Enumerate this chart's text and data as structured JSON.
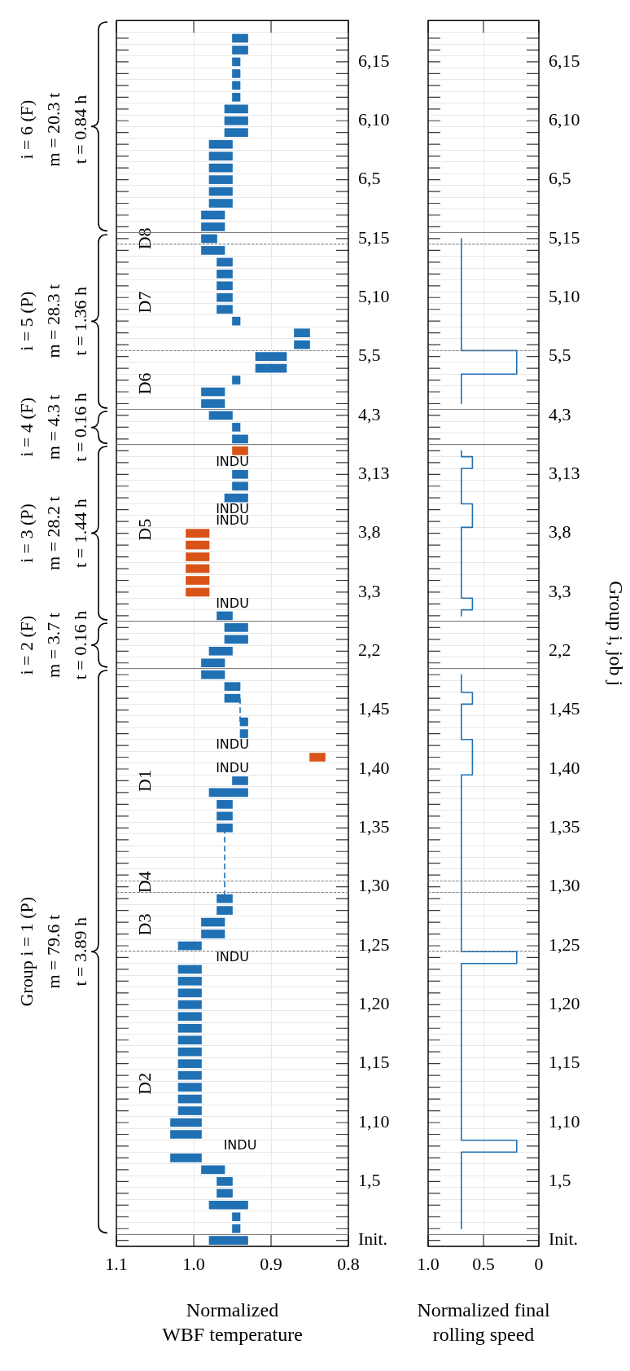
{
  "chart_data": [
    {
      "type": "bar",
      "orientation": "horizontal",
      "xlabel": "Normalized\nWBF temperature",
      "categories": [
        null,
        null,
        "6,15",
        null,
        null,
        null,
        null,
        "6,10",
        null,
        null,
        null,
        null,
        "6,5",
        null,
        null,
        null,
        null,
        "5,15",
        null,
        null,
        null,
        null,
        "5,10",
        null,
        null,
        null,
        null,
        "5,5",
        null,
        null,
        null,
        null,
        "4,3",
        null,
        null,
        null,
        null,
        "3,13",
        null,
        null,
        null,
        null,
        "3,8",
        null,
        null,
        null,
        null,
        "3,3",
        null,
        null,
        null,
        null,
        "2,2",
        null,
        null,
        null,
        null,
        "1,45",
        null,
        null,
        null,
        null,
        "1,40",
        null,
        null,
        null,
        null,
        "1,35",
        null,
        null,
        null,
        null,
        "1,30",
        null,
        null,
        null,
        null,
        "1,25",
        null,
        null,
        null,
        null,
        "1,20",
        null,
        null,
        null,
        null,
        "1,15",
        null,
        null,
        null,
        null,
        "1,10",
        null,
        null,
        null,
        null,
        "1,5",
        null,
        null,
        null,
        null,
        "Init."
      ],
      "xlim": [
        1.1,
        0.8
      ],
      "xticks": [
        1.1,
        {
          "value": 1,
          "label": "1.0"
        },
        0.9,
        0.8
      ],
      "grid": true,
      "series": [
        {
          "color": "#2070b4",
          "values": [
            0.02,
            0.02,
            0.01,
            0.01,
            0.01,
            0.01,
            0.03,
            0.03,
            0.03,
            0.03,
            0.03,
            0.03,
            0.03,
            0.03,
            0.03,
            0.03,
            0.03,
            0.02,
            0.03,
            0.02,
            0.02,
            0.02,
            0.02,
            0.02,
            0.01,
            0.02,
            0.02,
            0.04,
            0.04,
            0.01,
            0.03,
            0.03,
            0.03,
            0.01,
            0.02,
            null,
            null,
            0.02,
            0.02,
            0.03,
            null,
            null,
            null,
            null,
            null,
            null,
            null,
            null,
            null,
            0.02,
            0.03,
            0.03,
            0.03,
            0.03,
            0.03,
            0.02,
            0.02,
            null,
            0.01,
            0.01,
            null,
            null,
            null,
            0.02,
            0.05,
            0.02,
            0.02,
            0.02,
            null,
            null,
            null,
            null,
            null,
            0.02,
            0.02,
            0.03,
            0.03,
            0.03,
            null,
            0.03,
            0.03,
            0.03,
            0.03,
            0.03,
            0.03,
            0.03,
            0.03,
            0.03,
            0.03,
            0.03,
            0.03,
            0.03,
            0.04,
            0.04,
            null,
            0.04,
            0.03,
            0.02,
            0.02,
            0.05,
            0.01,
            0.01,
            0.05
          ],
          "base": [
            0.93,
            0.93,
            0.94,
            0.94,
            0.94,
            0.94,
            0.93,
            0.93,
            0.93,
            0.95,
            0.95,
            0.95,
            0.95,
            0.95,
            0.95,
            0.96,
            0.96,
            0.97,
            0.96,
            0.95,
            0.95,
            0.95,
            0.95,
            0.95,
            0.94,
            0.85,
            0.85,
            0.88,
            0.88,
            0.94,
            0.96,
            0.96,
            0.95,
            0.94,
            0.93,
            null,
            null,
            0.93,
            0.93,
            0.93,
            null,
            null,
            null,
            null,
            null,
            null,
            null,
            null,
            null,
            0.95,
            0.93,
            0.93,
            0.95,
            0.96,
            0.96,
            0.94,
            0.94,
            null,
            0.93,
            0.93,
            null,
            null,
            null,
            0.93,
            0.93,
            0.95,
            0.95,
            0.95,
            null,
            null,
            null,
            null,
            null,
            0.95,
            0.95,
            0.96,
            0.96,
            0.99,
            null,
            0.99,
            0.99,
            0.99,
            0.99,
            0.99,
            0.99,
            0.99,
            0.99,
            0.99,
            0.99,
            0.99,
            0.99,
            0.99,
            0.99,
            0.99,
            null,
            0.99,
            0.96,
            0.95,
            0.95,
            0.93,
            0.94,
            0.94,
            0.93
          ]
        },
        {
          "color": "#d95319",
          "values": [
            null,
            null,
            null,
            null,
            null,
            null,
            null,
            null,
            null,
            null,
            null,
            null,
            null,
            null,
            null,
            null,
            null,
            null,
            null,
            null,
            null,
            null,
            null,
            null,
            null,
            null,
            null,
            null,
            null,
            null,
            null,
            null,
            null,
            null,
            null,
            0.02,
            null,
            null,
            null,
            null,
            null,
            null,
            0.03,
            0.03,
            0.03,
            0.03,
            0.03,
            0.03,
            null,
            null,
            null,
            null,
            null,
            null,
            null,
            null,
            null,
            null,
            null,
            null,
            null,
            0.02,
            null,
            null,
            null,
            null,
            null,
            null,
            null,
            null,
            null,
            null,
            null,
            null,
            null,
            null,
            null,
            null,
            null,
            null,
            null,
            null,
            null,
            null,
            null,
            null,
            null,
            null,
            null,
            null,
            null,
            null,
            null,
            null,
            null,
            null,
            null,
            null,
            null,
            null,
            null,
            null,
            null
          ],
          "base": [
            null,
            null,
            null,
            null,
            null,
            null,
            null,
            null,
            null,
            null,
            null,
            null,
            null,
            null,
            null,
            null,
            null,
            null,
            null,
            null,
            null,
            null,
            null,
            null,
            null,
            null,
            null,
            null,
            null,
            null,
            null,
            null,
            null,
            null,
            null,
            0.93,
            null,
            null,
            null,
            null,
            null,
            null,
            0.98,
            0.98,
            0.98,
            0.98,
            0.98,
            0.98,
            null,
            null,
            null,
            null,
            null,
            null,
            null,
            null,
            null,
            null,
            null,
            null,
            null,
            0.83,
            null,
            null,
            null,
            null,
            null,
            null,
            null,
            null,
            null,
            null,
            null,
            null,
            null,
            null,
            null,
            null,
            null,
            null,
            null,
            null,
            null,
            null,
            null,
            null,
            null,
            null,
            null,
            null,
            null,
            null,
            null,
            null,
            null,
            null,
            null,
            null,
            null,
            null,
            null,
            null,
            null
          ]
        },
        {
          "type": "line",
          "line_style": "dashed",
          "color": "#2070b4",
          "values": [
            null,
            null,
            null,
            null,
            null,
            null,
            null,
            null,
            null,
            null,
            null,
            null,
            null,
            null,
            null,
            null,
            null,
            null,
            null,
            null,
            null,
            null,
            null,
            null,
            null,
            null,
            null,
            null,
            null,
            null,
            null,
            null,
            null,
            null,
            null,
            null,
            null,
            null,
            null,
            null,
            null,
            null,
            null,
            null,
            null,
            null,
            null,
            null,
            null,
            null,
            null,
            null,
            null,
            null,
            null,
            null,
            null,
            null,
            null,
            null,
            null,
            null,
            null,
            null,
            null,
            null,
            null,
            0.96,
            0.96,
            0.96,
            0.96,
            0.96,
            0.96,
            0.96,
            null,
            null,
            null,
            null,
            null,
            null,
            null,
            null,
            null,
            null,
            null,
            null,
            null,
            null,
            null,
            null,
            null,
            null,
            null,
            null,
            null,
            null,
            null,
            null,
            null,
            null,
            null,
            null,
            null
          ]
        },
        {
          "type": "line",
          "line_style": "dashed",
          "color": "#2070b4",
          "values": [
            null,
            null,
            null,
            null,
            null,
            null,
            null,
            null,
            null,
            null,
            null,
            null,
            null,
            null,
            null,
            null,
            null,
            null,
            null,
            null,
            null,
            null,
            null,
            null,
            null,
            null,
            null,
            null,
            null,
            null,
            null,
            null,
            null,
            null,
            null,
            null,
            null,
            null,
            null,
            null,
            null,
            null,
            null,
            null,
            null,
            null,
            null,
            null,
            null,
            null,
            null,
            null,
            null,
            null,
            null,
            null,
            0.94,
            0.94,
            0.94,
            null,
            null,
            null,
            null,
            null,
            null,
            null,
            null,
            null,
            null,
            null,
            null,
            null,
            null,
            null,
            null,
            null,
            null,
            null,
            null,
            null,
            null,
            null,
            null,
            null,
            null,
            null,
            null,
            null,
            null,
            null,
            null,
            null,
            null,
            null,
            null,
            null,
            null,
            null,
            null,
            null,
            null,
            null,
            null
          ]
        }
      ],
      "annotations": [
        "i = 6 (F)\nm = 20.3 t\nt = 0.84 h",
        "i = 5 (P)\nm = 28.3 t\nt = 1.36 h",
        "i = 4 (F)\nm = 4.3 t\nt = 0.16 h",
        "i = 3 (P)\nm = 28.2 t\nt = 1.44 h",
        "i = 2 (F)\nm = 3.7 t\nt = 0.16 h",
        "Group i = 1 (P)\nm = 79.6 t\nt = 3.89 h",
        "D8",
        "D7",
        "D6",
        "D5",
        "D1",
        "D4",
        "D3",
        "D2",
        "INDU",
        "INDU",
        "INDU",
        "INDU",
        "INDU",
        "INDU",
        "INDU",
        "INDU"
      ]
    },
    {
      "type": "step",
      "orientation": "horizontal",
      "xlabel": "Normalized final\nrolling speed",
      "ylabel": "Group i, job j",
      "categories": [
        null,
        null,
        "6,15",
        null,
        null,
        null,
        null,
        "6,10",
        null,
        null,
        null,
        null,
        "6,5",
        null,
        null,
        null,
        null,
        "5,15",
        null,
        null,
        null,
        null,
        "5,10",
        null,
        null,
        null,
        null,
        "5,5",
        null,
        null,
        null,
        null,
        "4,3",
        null,
        null,
        null,
        null,
        "3,13",
        null,
        null,
        null,
        null,
        "3,8",
        null,
        null,
        null,
        null,
        "3,3",
        null,
        null,
        null,
        null,
        "2,2",
        null,
        null,
        null,
        null,
        "1,45",
        null,
        null,
        null,
        null,
        "1,40",
        null,
        null,
        null,
        null,
        "1,35",
        null,
        null,
        null,
        null,
        "1,30",
        null,
        null,
        null,
        null,
        "1,25",
        null,
        null,
        null,
        null,
        "1,20",
        null,
        null,
        null,
        null,
        "1,15",
        null,
        null,
        null,
        null,
        "1,10",
        null,
        null,
        null,
        null,
        "1,5",
        null,
        null,
        null,
        null,
        "Init."
      ],
      "xlim": [
        1,
        0
      ],
      "xticks": [
        {
          "value": 1,
          "label": "1.0"
        },
        0.5,
        0
      ],
      "grid": true,
      "series": [
        {
          "color": "#2070b4",
          "values": [
            null,
            null,
            null,
            null,
            null,
            null,
            null,
            null,
            null,
            null,
            null,
            null,
            null,
            null,
            null,
            null,
            null,
            0.7,
            0.7,
            0.7,
            0.7,
            0.7,
            0.7,
            0.7,
            0.7,
            0.7,
            0.7,
            0.2,
            0.2,
            0.7,
            0.7,
            0.7,
            null,
            null,
            null,
            0.7,
            0.6,
            0.7,
            0.7,
            0.7,
            0.6,
            0.6,
            0.7,
            0.7,
            0.7,
            0.7,
            0.7,
            0.7,
            0.6,
            0.7,
            null,
            null,
            null,
            null,
            0.7,
            0.7,
            0.6,
            0.7,
            0.7,
            0.7,
            0.6,
            0.6,
            0.6,
            0.7,
            0.7,
            0.7,
            0.7,
            0.7,
            0.7,
            0.7,
            0.7,
            0.7,
            0.7,
            0.7,
            0.7,
            0.7,
            0.7,
            0.7,
            0.2,
            0.7,
            0.7,
            0.7,
            0.7,
            0.7,
            0.7,
            0.7,
            0.7,
            0.7,
            0.7,
            0.7,
            0.7,
            0.7,
            0.7,
            0.7,
            0.2,
            0.7,
            0.7,
            0.7,
            0.7,
            0.7,
            0.7,
            0.7,
            null
          ]
        }
      ]
    }
  ]
}
